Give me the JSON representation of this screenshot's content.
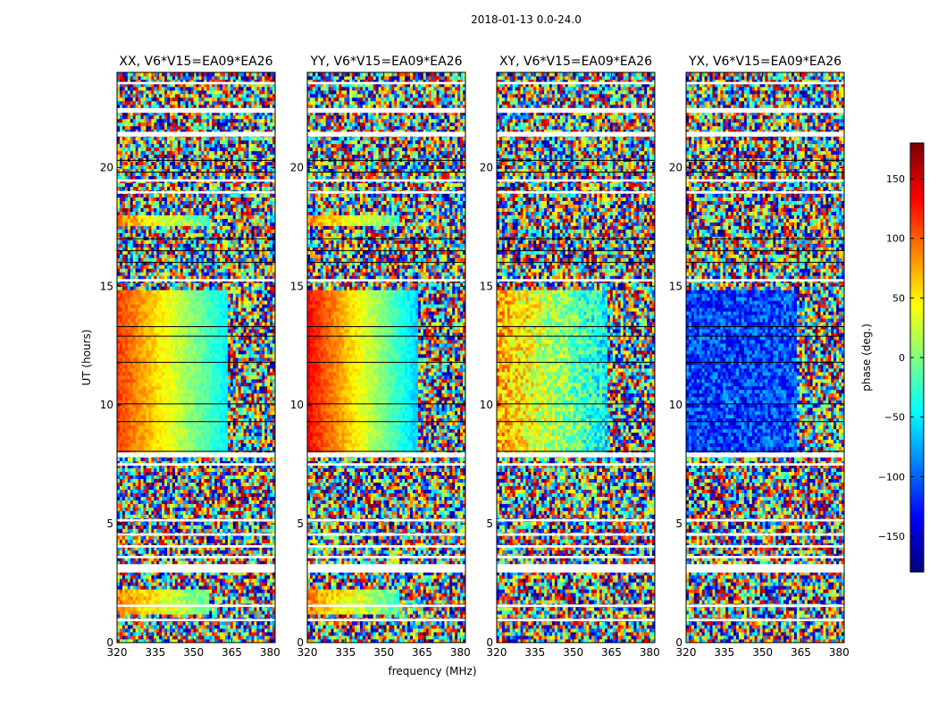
{
  "chart_data": {
    "type": "heatmap",
    "suptitle": "2018-01-13 0.0-24.0",
    "xlabel": "frequency (MHz)",
    "ylabel": "UT (hours)",
    "xlim": [
      320,
      382
    ],
    "ylim": [
      0,
      24
    ],
    "xticks": [
      320,
      335,
      350,
      365,
      380
    ],
    "yticks": [
      0,
      5,
      10,
      15,
      20
    ],
    "panels": [
      {
        "title": "XX, V6*V15=EA09*EA26",
        "id": "xx"
      },
      {
        "title": "YY, V6*V15=EA09*EA26",
        "id": "yy"
      },
      {
        "title": "XY, V6*V15=EA09*EA26",
        "id": "xy"
      },
      {
        "title": "YX, V6*V15=EA09*EA26",
        "id": "yx"
      }
    ],
    "colorbar": {
      "label": "phase (deg.)",
      "range": [
        -180,
        180
      ],
      "ticks": [
        -150,
        -100,
        -50,
        0,
        50,
        100,
        150
      ],
      "tick_labels": [
        "−150",
        "−100",
        "−50",
        "0",
        "50",
        "100",
        "150"
      ],
      "colormap": "jet"
    },
    "flagged_time_bands_hours": [
      [
        0.9,
        1.0
      ],
      [
        1.5,
        1.6
      ],
      [
        2.95,
        3.3
      ],
      [
        3.55,
        3.65
      ],
      [
        4.0,
        4.1
      ],
      [
        4.5,
        4.6
      ],
      [
        5.1,
        5.2
      ],
      [
        7.45,
        7.55
      ],
      [
        7.8,
        8.0
      ],
      [
        15.2,
        15.3
      ],
      [
        18.9,
        19.0
      ],
      [
        19.4,
        19.5
      ],
      [
        21.3,
        21.5
      ],
      [
        22.3,
        22.5
      ],
      [
        23.5,
        23.6
      ]
    ]
  }
}
